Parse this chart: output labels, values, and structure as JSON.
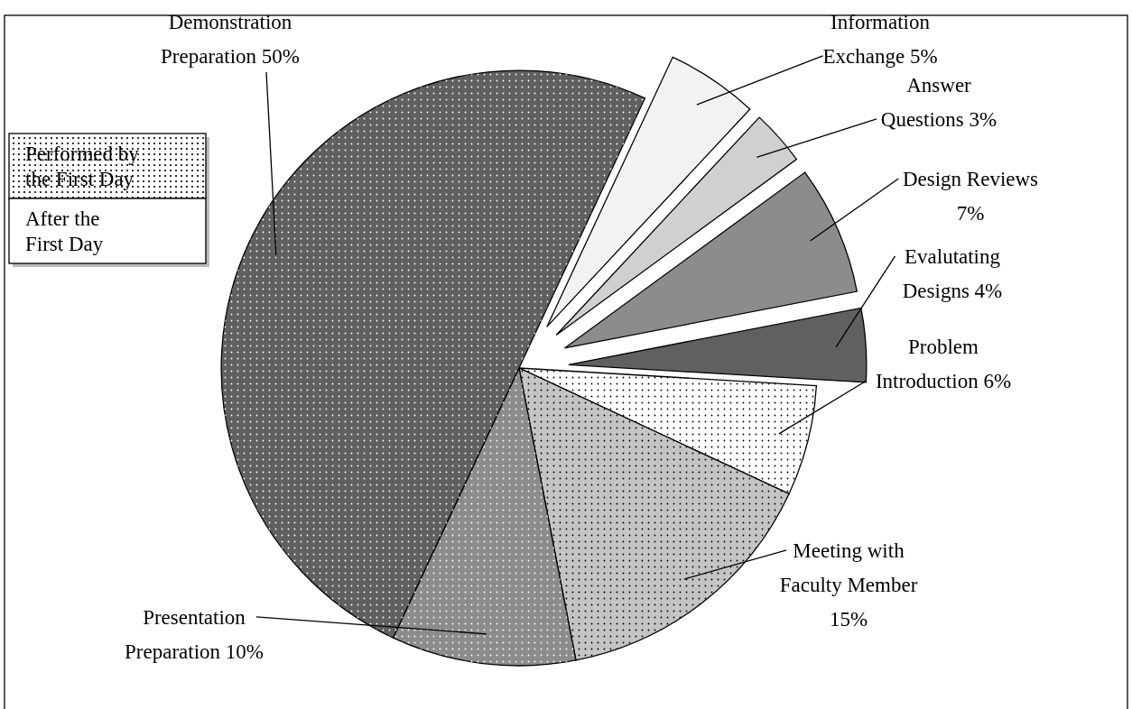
{
  "chart_data": {
    "type": "pie",
    "categories": [
      "Information Exchange",
      "Answer Questions",
      "Design Reviews",
      "Evalutating Designs",
      "Problem Introduction",
      "Meeting with Faculty Member",
      "Presentation Preparation",
      "Demonstration Preparation"
    ],
    "values": [
      5,
      3,
      7,
      4,
      6,
      15,
      10,
      50
    ],
    "colors": [
      "#f2f2f2",
      "#d0d0d0",
      "#8c8c8c",
      "#606060",
      "#ffffff",
      "#c4c4c4",
      "#8c8c8c",
      "#606060"
    ],
    "value_labels": [
      "5%",
      "3%",
      "7%",
      "4%",
      "6%",
      "15%",
      "10%",
      "50%"
    ],
    "annotations": [
      "Performed by the First Day",
      "After the First Day"
    ]
  }
}
